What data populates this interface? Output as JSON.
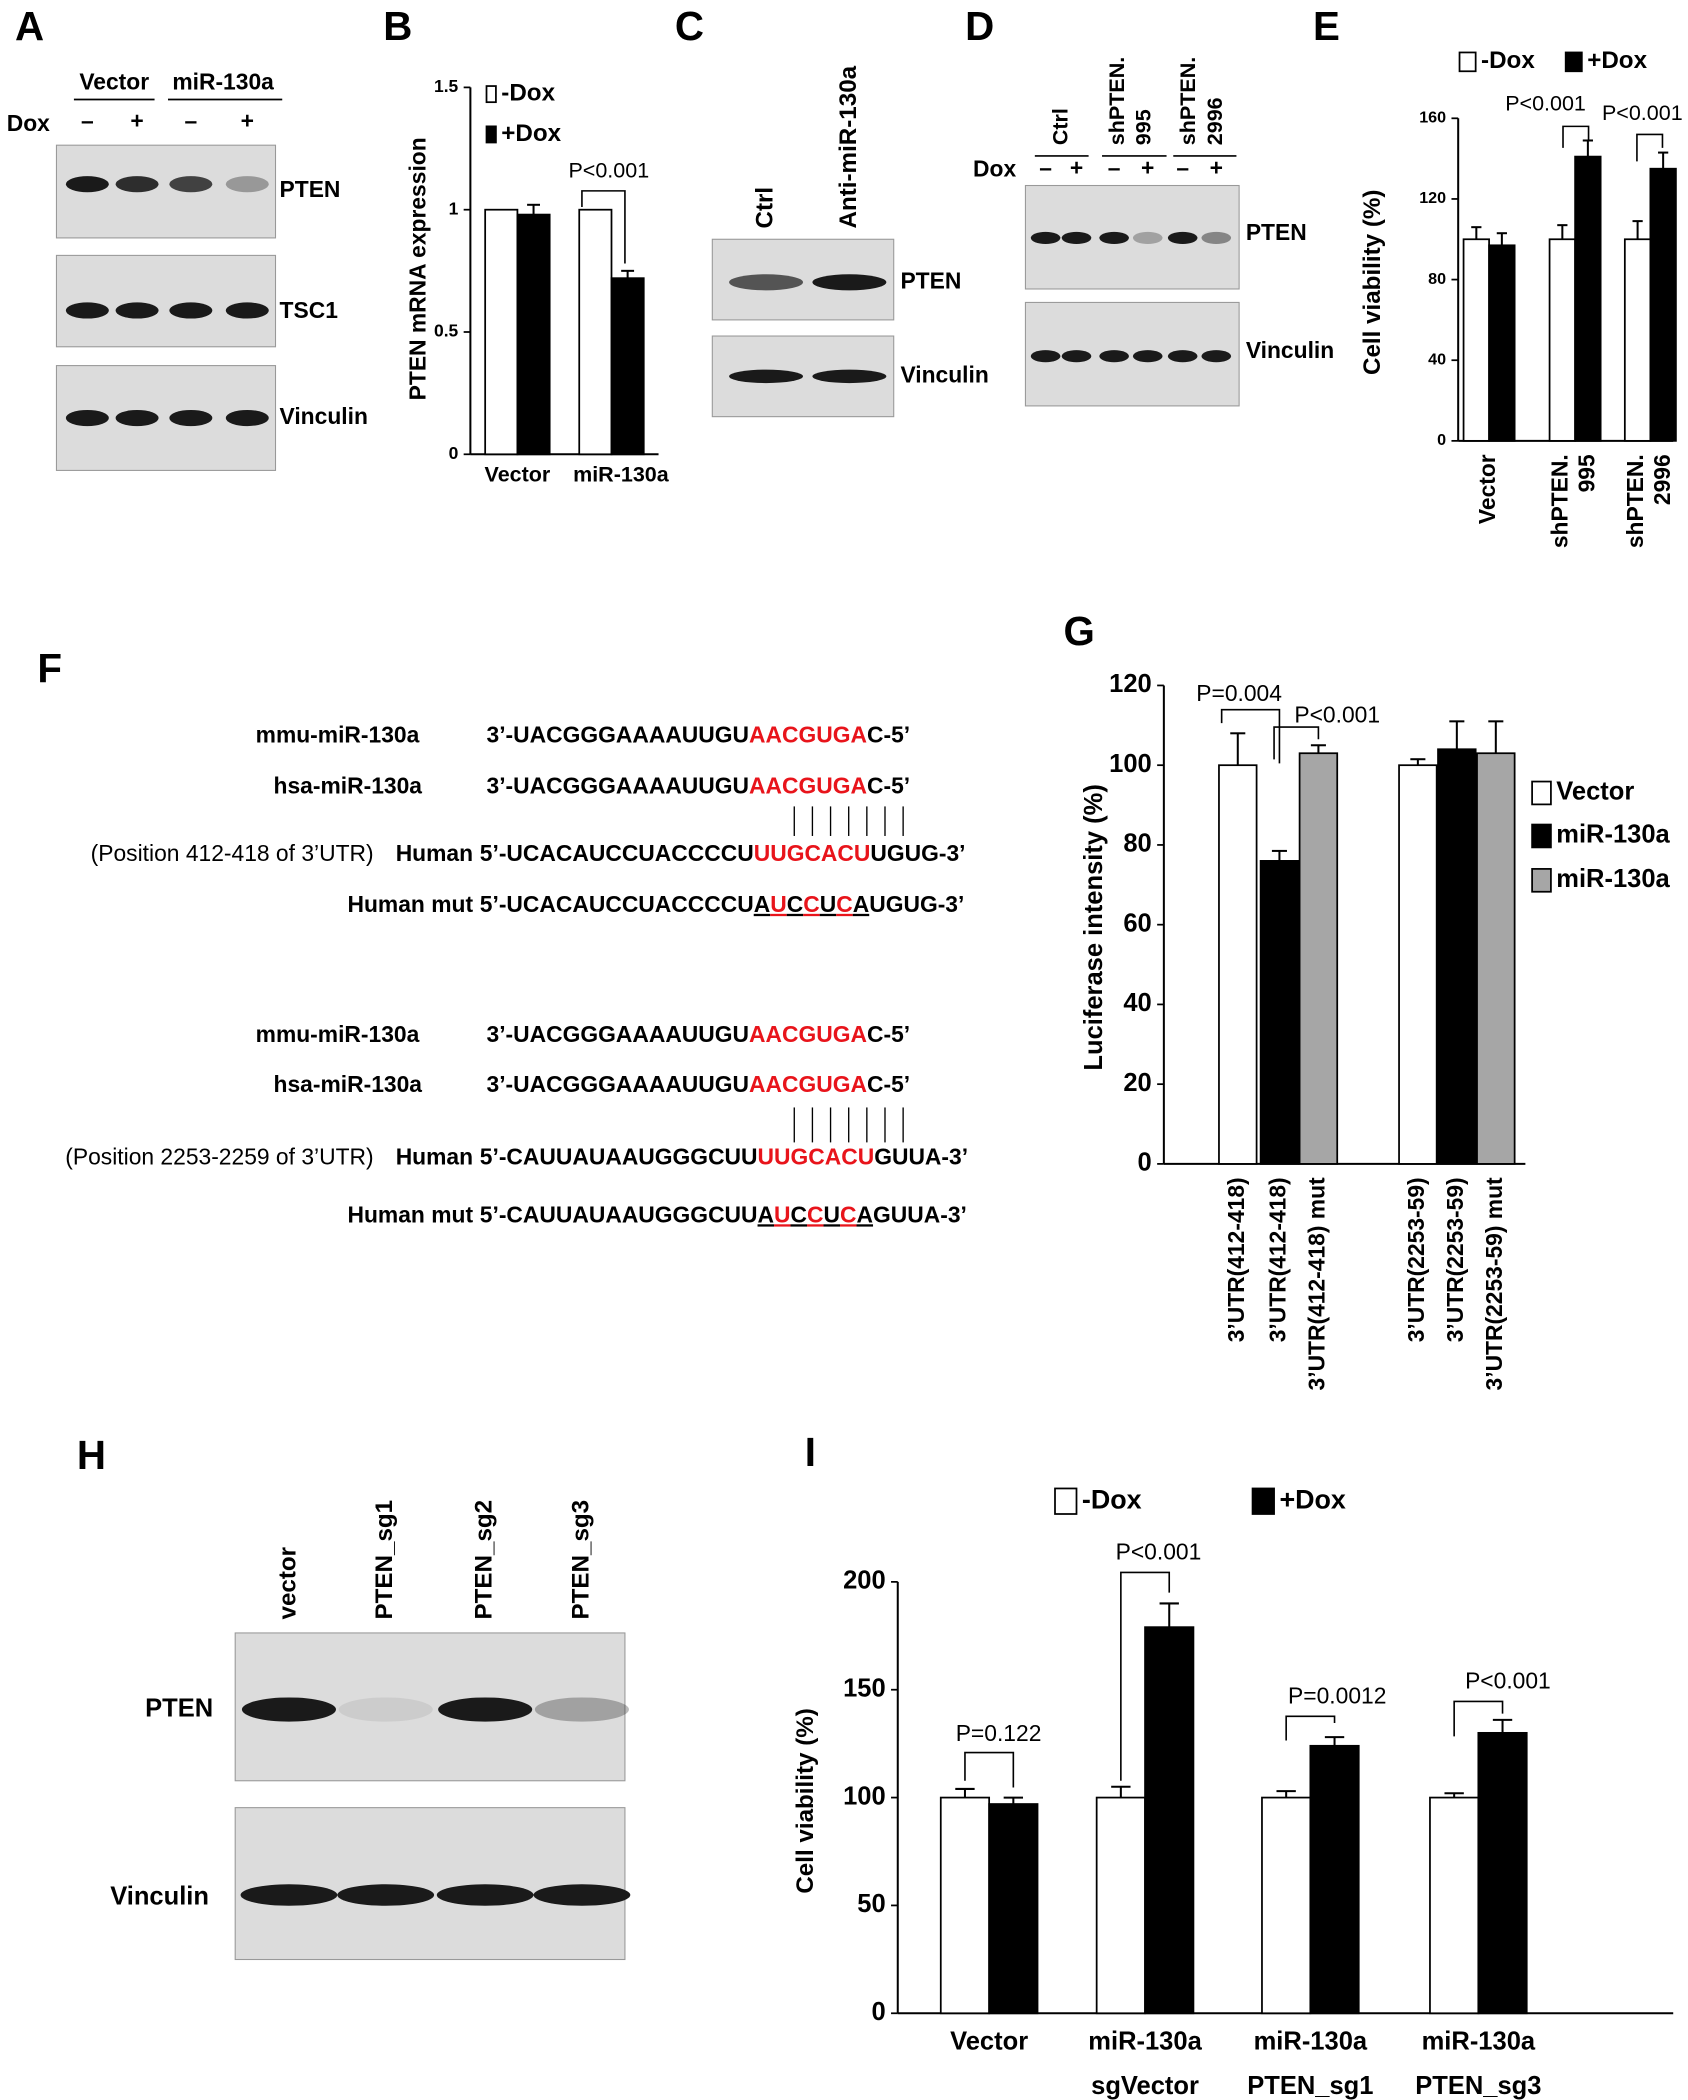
{
  "panel_labels": [
    "A",
    "B",
    "C",
    "D",
    "E",
    "F",
    "G",
    "H",
    "I"
  ],
  "blots": {
    "A": {
      "groups": [
        "Vector",
        "miR-130a"
      ],
      "row_label": "Dox",
      "lanes": [
        "–",
        "+",
        "–",
        "+"
      ],
      "proteins": [
        "PTEN",
        "TSC1",
        "Vinculin"
      ]
    },
    "C": {
      "lanes": [
        "Ctrl",
        "Anti-miR-130a"
      ],
      "proteins": [
        "PTEN",
        "Vinculin"
      ]
    },
    "D": {
      "groups": [
        [
          "Ctrl"
        ],
        [
          "shPTEN.",
          "995"
        ],
        [
          "shPTEN.",
          "2996"
        ]
      ],
      "row_label": "Dox",
      "lanes": [
        "–",
        "+",
        "–",
        "+",
        "–",
        "+"
      ],
      "proteins": [
        "PTEN",
        "Vinculin"
      ]
    },
    "H": {
      "lanes": [
        "vector",
        "PTEN_sg1",
        "PTEN_sg2",
        "PTEN_sg3"
      ],
      "proteins": [
        "PTEN",
        "Vinculin"
      ]
    }
  },
  "sequences": [
    {
      "rows": [
        {
          "name": "mmu-miR-130a",
          "segments": [
            {
              "text": "3’-UACGGGAAAAUUGU"
            },
            {
              "text": "AACGUGA",
              "color": "#e8141b"
            },
            {
              "text": "C-5’"
            }
          ]
        },
        {
          "name": "hsa-miR-130a",
          "segments": [
            {
              "text": "3’-UACGGGAAAAUUGU"
            },
            {
              "text": "AACGUGA",
              "color": "#e8141b"
            },
            {
              "text": "C-5’"
            }
          ]
        },
        {
          "note": "(Position 412-418 of 3’UTR)",
          "name": "Human",
          "segments": [
            {
              "text": "5’-UCACAUCCUACCCCU"
            },
            {
              "text": "UUGCACU",
              "color": "#e8141b"
            },
            {
              "text": "UGUG-3’"
            }
          ]
        },
        {
          "name": "Human mut",
          "segments": [
            {
              "text": "5’-UCACAUCCUACCCCU"
            },
            {
              "text": "A",
              "underline": true
            },
            {
              "text": "U",
              "color": "#e8141b",
              "underline": true
            },
            {
              "text": "C",
              "underline": true
            },
            {
              "text": "C",
              "color": "#e8141b",
              "underline": true
            },
            {
              "text": "U",
              "underline": true
            },
            {
              "text": "C",
              "color": "#e8141b",
              "underline": true
            },
            {
              "text": "A",
              "underline": true
            },
            {
              "text": "UGUG-3’"
            }
          ]
        }
      ]
    },
    {
      "rows": [
        {
          "name": "mmu-miR-130a",
          "segments": [
            {
              "text": "3’-UACGGGAAAAUUGU"
            },
            {
              "text": "AACGUGA",
              "color": "#e8141b"
            },
            {
              "text": "C-5’"
            }
          ]
        },
        {
          "name": "hsa-miR-130a",
          "segments": [
            {
              "text": "3’-UACGGGAAAAUUGU"
            },
            {
              "text": "AACGUGA",
              "color": "#e8141b"
            },
            {
              "text": "C-5’"
            }
          ]
        },
        {
          "note": "(Position 2253-2259 of 3’UTR)",
          "name": "Human",
          "segments": [
            {
              "text": "5’-CAUUAUAAUGGGCUU"
            },
            {
              "text": "UUGCACU",
              "color": "#e8141b"
            },
            {
              "text": "GUUA-3’"
            }
          ]
        },
        {
          "name": "Human mut",
          "segments": [
            {
              "text": "5’-CAUUAUAAUGGGCUU"
            },
            {
              "text": "A",
              "underline": true
            },
            {
              "text": "U",
              "color": "#e8141b",
              "underline": true
            },
            {
              "text": "C",
              "underline": true
            },
            {
              "text": "C",
              "color": "#e8141b",
              "underline": true
            },
            {
              "text": "U",
              "underline": true
            },
            {
              "text": "C",
              "color": "#e8141b",
              "underline": true
            },
            {
              "text": "A",
              "underline": true
            },
            {
              "text": "GUUA-3’"
            }
          ]
        }
      ]
    }
  ],
  "chart_data": [
    {
      "type": "bar",
      "ylabel": "PTEN mRNA expression",
      "categories": [
        [
          "Vector"
        ],
        [
          "miR-130a"
        ]
      ],
      "series": [
        {
          "name": "-Dox",
          "color": "#ffffff",
          "values": [
            1,
            1
          ]
        },
        {
          "name": "+Dox",
          "color": "#000000",
          "values": [
            0.98,
            0.72
          ],
          "errors": [
            0.04,
            0.03
          ]
        }
      ],
      "ylim": [
        0,
        1.5
      ],
      "yticks": [
        0,
        0.5,
        1,
        1.5
      ],
      "annotations": [
        "P<0.001"
      ]
    },
    {
      "type": "bar",
      "ylabel": "Cell viability (%)",
      "categories": [
        [
          "Vector"
        ],
        [
          "shPTEN.",
          "995"
        ],
        [
          "shPTEN.",
          "2996"
        ]
      ],
      "series": [
        {
          "name": "-Dox",
          "color": "#ffffff",
          "values": [
            100,
            100,
            100
          ],
          "errors": [
            6,
            7,
            9
          ]
        },
        {
          "name": "+Dox",
          "color": "#000000",
          "values": [
            97,
            141,
            135
          ],
          "errors": [
            6,
            8,
            8
          ]
        }
      ],
      "ylim": [
        0,
        160
      ],
      "yticks": [
        0,
        40,
        80,
        120,
        160
      ],
      "annotations": [
        "P<0.001",
        "P<0.001"
      ]
    },
    {
      "type": "bar",
      "ylabel": "Luciferase intensity  (%)",
      "categories": [
        [
          "3’UTR(412-418)"
        ],
        [
          "3’UTR(412-418)"
        ],
        [
          "3’UTR(412-418) mut"
        ],
        [
          "3’UTR(2253-59)"
        ],
        [
          "3’UTR(2253-59)"
        ],
        [
          "3’UTR(2253-59) mut"
        ]
      ],
      "series": [
        {
          "name": "Vector",
          "color": "#ffffff",
          "values": [
            100,
            null,
            null,
            100,
            null,
            null
          ],
          "errors": [
            8,
            null,
            null,
            1.5,
            null,
            null
          ]
        },
        {
          "name": "miR-130a",
          "color": "#000000",
          "values": [
            null,
            76,
            null,
            null,
            104,
            null
          ],
          "errors": [
            null,
            2.5,
            null,
            null,
            7,
            null
          ]
        },
        {
          "name": "miR-130a",
          "color": "#a6a6a6",
          "values": [
            null,
            null,
            103,
            null,
            null,
            103
          ],
          "errors": [
            null,
            null,
            2,
            null,
            null,
            8
          ]
        }
      ],
      "ylim": [
        0,
        120
      ],
      "yticks": [
        0,
        20,
        40,
        60,
        80,
        100,
        120
      ],
      "annotations": [
        "P=0.004",
        "P<0.001"
      ]
    },
    {
      "type": "bar",
      "ylabel": "Cell viability (%)",
      "categories": [
        [
          "Vector"
        ],
        [
          "miR-130a",
          "sgVector"
        ],
        [
          "miR-130a",
          "PTEN_sg1"
        ],
        [
          "miR-130a",
          "PTEN_sg3"
        ]
      ],
      "series": [
        {
          "name": "-Dox",
          "color": "#ffffff",
          "values": [
            100,
            100,
            100,
            100
          ],
          "errors": [
            4,
            5,
            3,
            2
          ]
        },
        {
          "name": "+Dox",
          "color": "#000000",
          "values": [
            97,
            179,
            124,
            130
          ],
          "errors": [
            3,
            11,
            4,
            6
          ]
        }
      ],
      "ylim": [
        0,
        200
      ],
      "yticks": [
        0,
        50,
        100,
        150,
        200
      ],
      "annotations": [
        "P=0.122",
        "P<0.001",
        "P=0.0012",
        "P<0.001"
      ]
    }
  ]
}
